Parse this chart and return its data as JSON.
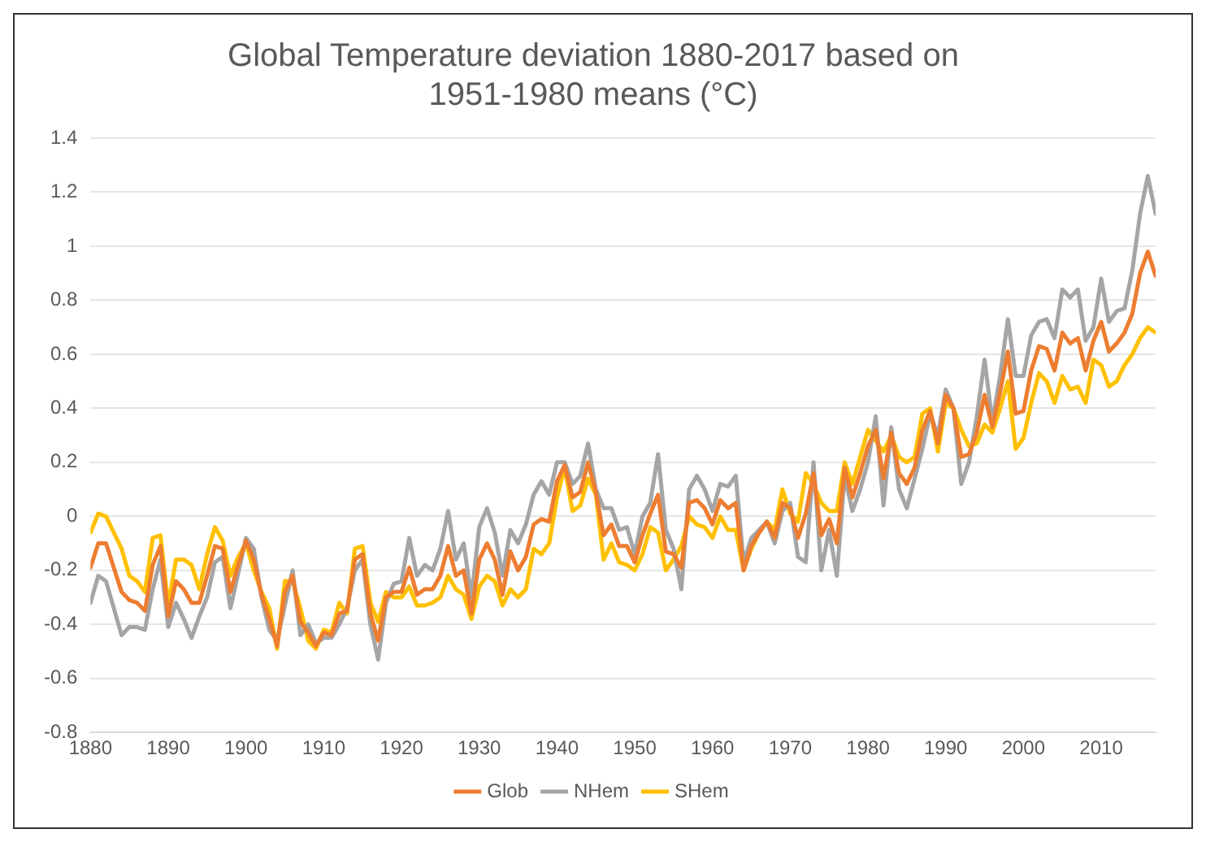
{
  "chart_data": {
    "type": "line",
    "title": "Global Temperature deviation 1880-2017 based on 1951-1980 means (°C)",
    "x": [
      1880,
      1881,
      1882,
      1883,
      1884,
      1885,
      1886,
      1887,
      1888,
      1889,
      1890,
      1891,
      1892,
      1893,
      1894,
      1895,
      1896,
      1897,
      1898,
      1899,
      1900,
      1901,
      1902,
      1903,
      1904,
      1905,
      1906,
      1907,
      1908,
      1909,
      1910,
      1911,
      1912,
      1913,
      1914,
      1915,
      1916,
      1917,
      1918,
      1919,
      1920,
      1921,
      1922,
      1923,
      1924,
      1925,
      1926,
      1927,
      1928,
      1929,
      1930,
      1931,
      1932,
      1933,
      1934,
      1935,
      1936,
      1937,
      1938,
      1939,
      1940,
      1941,
      1942,
      1943,
      1944,
      1945,
      1946,
      1947,
      1948,
      1949,
      1950,
      1951,
      1952,
      1953,
      1954,
      1955,
      1956,
      1957,
      1958,
      1959,
      1960,
      1961,
      1962,
      1963,
      1964,
      1965,
      1966,
      1967,
      1968,
      1969,
      1970,
      1971,
      1972,
      1973,
      1974,
      1975,
      1976,
      1977,
      1978,
      1979,
      1980,
      1981,
      1982,
      1983,
      1984,
      1985,
      1986,
      1987,
      1988,
      1989,
      1990,
      1991,
      1992,
      1993,
      1994,
      1995,
      1996,
      1997,
      1998,
      1999,
      2000,
      2001,
      2002,
      2003,
      2004,
      2005,
      2006,
      2007,
      2008,
      2009,
      2010,
      2011,
      2012,
      2013,
      2014,
      2015,
      2016,
      2017
    ],
    "series": [
      {
        "name": "Glob",
        "color": "#ed7d31",
        "values": [
          -0.19,
          -0.1,
          -0.1,
          -0.19,
          -0.28,
          -0.31,
          -0.32,
          -0.35,
          -0.18,
          -0.11,
          -0.37,
          -0.24,
          -0.27,
          -0.32,
          -0.32,
          -0.22,
          -0.11,
          -0.12,
          -0.28,
          -0.18,
          -0.09,
          -0.16,
          -0.29,
          -0.38,
          -0.48,
          -0.28,
          -0.22,
          -0.39,
          -0.43,
          -0.48,
          -0.43,
          -0.44,
          -0.36,
          -0.35,
          -0.16,
          -0.14,
          -0.36,
          -0.46,
          -0.3,
          -0.28,
          -0.28,
          -0.19,
          -0.29,
          -0.27,
          -0.27,
          -0.22,
          -0.11,
          -0.22,
          -0.2,
          -0.36,
          -0.16,
          -0.1,
          -0.16,
          -0.29,
          -0.13,
          -0.2,
          -0.15,
          -0.03,
          -0.01,
          -0.02,
          0.13,
          0.19,
          0.07,
          0.09,
          0.2,
          0.09,
          -0.07,
          -0.03,
          -0.11,
          -0.11,
          -0.17,
          -0.07,
          0.01,
          0.08,
          -0.13,
          -0.14,
          -0.19,
          0.05,
          0.06,
          0.03,
          -0.03,
          0.06,
          0.03,
          0.05,
          -0.2,
          -0.11,
          -0.06,
          -0.02,
          -0.08,
          0.05,
          0.03,
          -0.08,
          0.01,
          0.16,
          -0.07,
          -0.01,
          -0.1,
          0.18,
          0.07,
          0.16,
          0.26,
          0.32,
          0.14,
          0.31,
          0.16,
          0.12,
          0.18,
          0.32,
          0.39,
          0.27,
          0.45,
          0.4,
          0.22,
          0.23,
          0.31,
          0.45,
          0.33,
          0.46,
          0.61,
          0.38,
          0.39,
          0.54,
          0.63,
          0.62,
          0.54,
          0.68,
          0.64,
          0.66,
          0.54,
          0.65,
          0.72,
          0.61,
          0.64,
          0.68,
          0.75,
          0.9,
          0.98,
          0.89
        ]
      },
      {
        "name": "NHem",
        "color": "#a5a5a5",
        "values": [
          -0.32,
          -0.22,
          -0.24,
          -0.34,
          -0.44,
          -0.41,
          -0.41,
          -0.42,
          -0.27,
          -0.16,
          -0.41,
          -0.32,
          -0.38,
          -0.45,
          -0.37,
          -0.3,
          -0.17,
          -0.15,
          -0.34,
          -0.21,
          -0.08,
          -0.12,
          -0.3,
          -0.42,
          -0.46,
          -0.33,
          -0.2,
          -0.44,
          -0.4,
          -0.47,
          -0.45,
          -0.45,
          -0.4,
          -0.34,
          -0.2,
          -0.16,
          -0.4,
          -0.53,
          -0.32,
          -0.25,
          -0.24,
          -0.08,
          -0.22,
          -0.18,
          -0.2,
          -0.12,
          0.02,
          -0.16,
          -0.1,
          -0.3,
          -0.04,
          0.03,
          -0.06,
          -0.22,
          -0.05,
          -0.1,
          -0.03,
          0.08,
          0.13,
          0.08,
          0.2,
          0.2,
          0.12,
          0.15,
          0.27,
          0.1,
          0.03,
          0.03,
          -0.05,
          -0.04,
          -0.14,
          0.0,
          0.05,
          0.23,
          -0.05,
          -0.12,
          -0.27,
          0.1,
          0.15,
          0.1,
          0.02,
          0.12,
          0.11,
          0.15,
          -0.17,
          -0.08,
          -0.05,
          -0.02,
          -0.1,
          0.02,
          0.05,
          -0.15,
          -0.17,
          0.2,
          -0.2,
          -0.05,
          -0.22,
          0.15,
          0.02,
          0.1,
          0.2,
          0.37,
          0.04,
          0.33,
          0.1,
          0.03,
          0.14,
          0.25,
          0.38,
          0.3,
          0.47,
          0.4,
          0.12,
          0.2,
          0.37,
          0.58,
          0.35,
          0.52,
          0.73,
          0.52,
          0.52,
          0.67,
          0.72,
          0.73,
          0.66,
          0.84,
          0.81,
          0.84,
          0.65,
          0.7,
          0.88,
          0.72,
          0.76,
          0.77,
          0.91,
          1.12,
          1.26,
          1.12
        ]
      },
      {
        "name": "SHem",
        "color": "#ffc000",
        "values": [
          -0.06,
          0.01,
          0.0,
          -0.06,
          -0.12,
          -0.22,
          -0.24,
          -0.28,
          -0.08,
          -0.07,
          -0.33,
          -0.16,
          -0.16,
          -0.18,
          -0.27,
          -0.14,
          -0.04,
          -0.09,
          -0.22,
          -0.15,
          -0.1,
          -0.2,
          -0.28,
          -0.34,
          -0.49,
          -0.24,
          -0.24,
          -0.34,
          -0.46,
          -0.49,
          -0.42,
          -0.43,
          -0.32,
          -0.36,
          -0.12,
          -0.11,
          -0.32,
          -0.39,
          -0.28,
          -0.3,
          -0.3,
          -0.26,
          -0.33,
          -0.33,
          -0.32,
          -0.3,
          -0.22,
          -0.27,
          -0.29,
          -0.38,
          -0.26,
          -0.22,
          -0.24,
          -0.33,
          -0.27,
          -0.3,
          -0.27,
          -0.12,
          -0.14,
          -0.1,
          0.07,
          0.18,
          0.02,
          0.04,
          0.14,
          0.08,
          -0.16,
          -0.1,
          -0.17,
          -0.18,
          -0.2,
          -0.14,
          -0.04,
          -0.06,
          -0.2,
          -0.16,
          -0.11,
          0.0,
          -0.03,
          -0.04,
          -0.08,
          0.0,
          -0.05,
          -0.05,
          -0.2,
          -0.12,
          -0.06,
          -0.02,
          -0.05,
          0.1,
          0.01,
          -0.02,
          0.16,
          0.12,
          0.05,
          0.02,
          0.02,
          0.2,
          0.12,
          0.22,
          0.32,
          0.28,
          0.24,
          0.3,
          0.22,
          0.2,
          0.22,
          0.38,
          0.4,
          0.24,
          0.42,
          0.4,
          0.32,
          0.26,
          0.27,
          0.34,
          0.31,
          0.4,
          0.5,
          0.25,
          0.29,
          0.42,
          0.53,
          0.5,
          0.42,
          0.52,
          0.47,
          0.48,
          0.42,
          0.58,
          0.56,
          0.48,
          0.5,
          0.56,
          0.6,
          0.66,
          0.7,
          0.68
        ]
      }
    ],
    "xlim": [
      1880,
      2017
    ],
    "xticks": [
      1880,
      1890,
      1900,
      1910,
      1920,
      1930,
      1940,
      1950,
      1960,
      1970,
      1980,
      1990,
      2000,
      2010
    ],
    "ylim": [
      -0.8,
      1.4
    ],
    "yticks": [
      -0.8,
      -0.6,
      -0.4,
      -0.2,
      0,
      0.2,
      0.4,
      0.6,
      0.8,
      1,
      1.2,
      1.4
    ],
    "grid": "y",
    "legend": "bottom",
    "marker": "none",
    "line_style": "solid"
  }
}
